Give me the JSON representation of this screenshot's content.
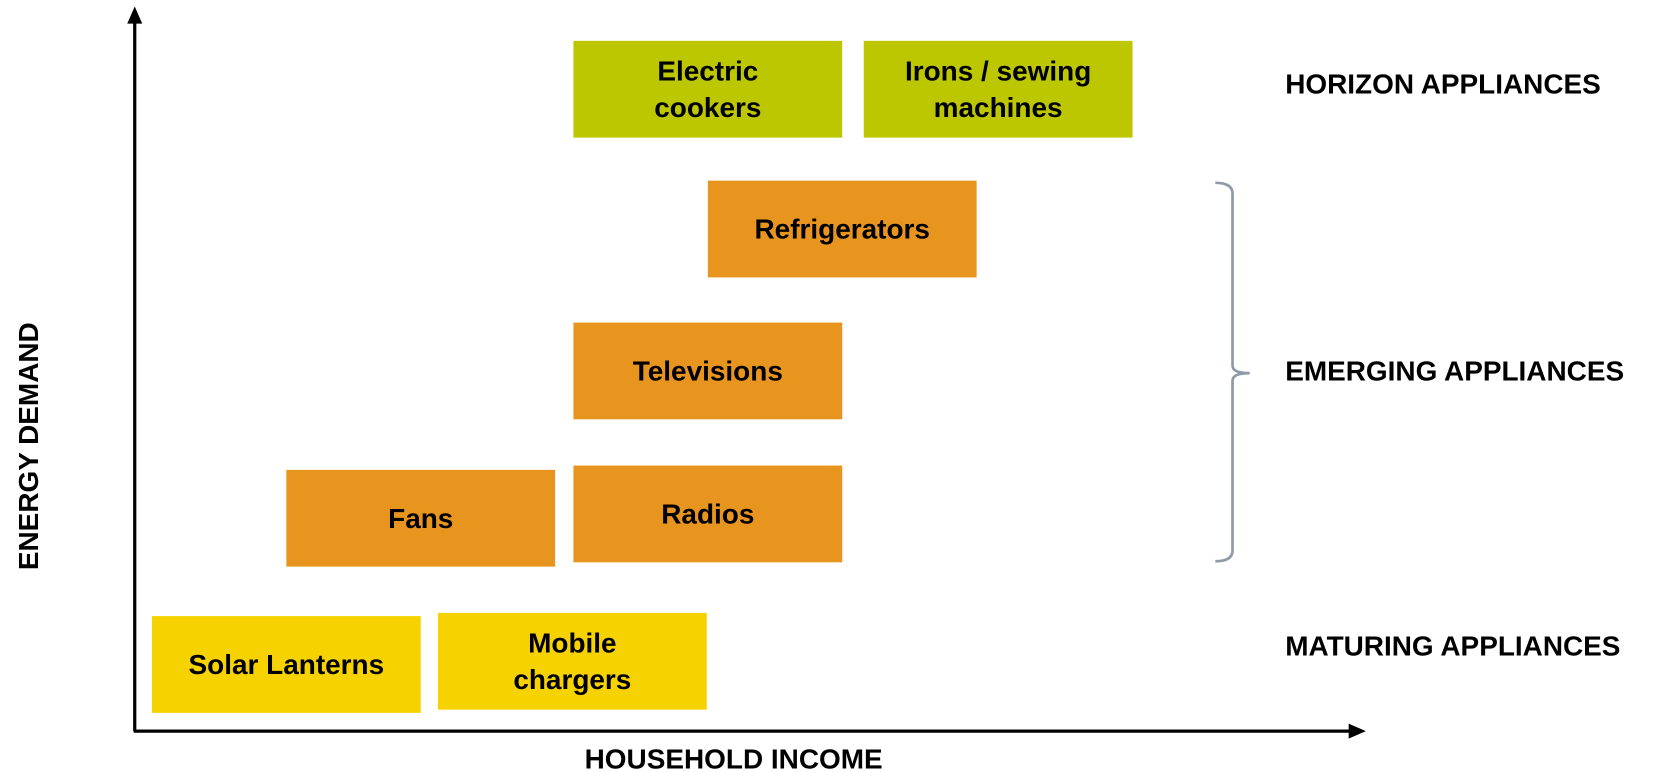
{
  "axes": {
    "y_label": "ENERGY DEMAND",
    "x_label": "HOUSEHOLD INCOME"
  },
  "nodes": [
    {
      "lines": [
        "Electric",
        "cookers"
      ],
      "color": "#bdc700"
    },
    {
      "lines": [
        "Irons / sewing",
        "machines"
      ],
      "color": "#bdc700"
    },
    {
      "lines": [
        "Refrigerators"
      ],
      "color": "#e8951f"
    },
    {
      "lines": [
        "Televisions"
      ],
      "color": "#e8951f"
    },
    {
      "lines": [
        "Fans"
      ],
      "color": "#e8951f"
    },
    {
      "lines": [
        "Radios"
      ],
      "color": "#e8951f"
    },
    {
      "lines": [
        "Solar Lanterns"
      ],
      "color": "#f6d300"
    },
    {
      "lines": [
        "Mobile",
        "chargers"
      ],
      "color": "#f6d300"
    }
  ],
  "categories": [
    "HORIZON APPLIANCES",
    "EMERGING APPLIANCES",
    "MATURING APPLIANCES"
  ]
}
